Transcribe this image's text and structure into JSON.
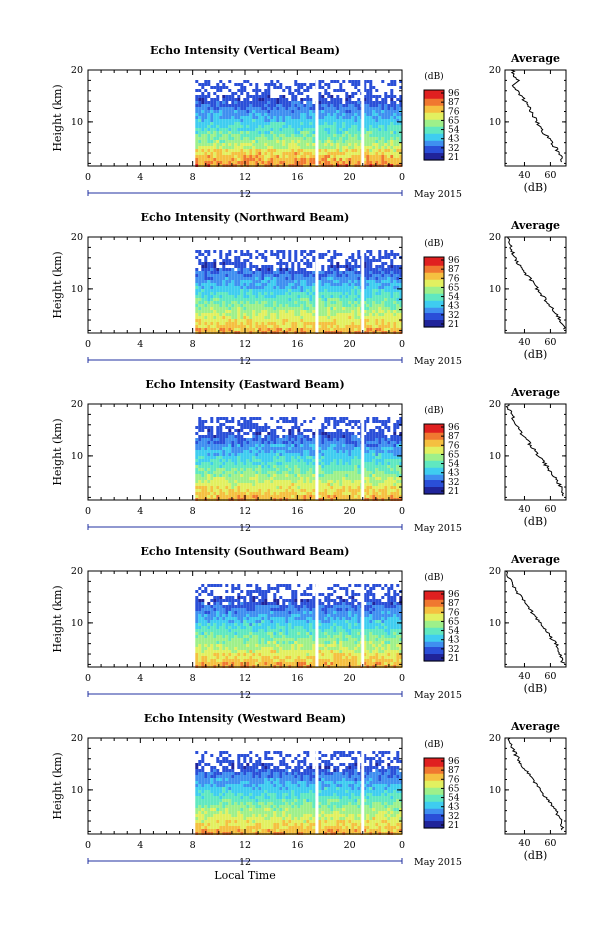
{
  "chart_data": [
    {
      "type": "heatmap",
      "title": "Echo Intensity (Vertical Beam)",
      "ylabel": "Height (km)",
      "xticks": [
        "0",
        "4",
        "8",
        "12",
        "16",
        "20",
        "0"
      ],
      "yticks": [
        "10",
        "20"
      ],
      "xlim": [
        0,
        24
      ],
      "ylim": [
        1.5,
        20
      ],
      "date_marker": "12",
      "date_label": "May 2015",
      "colorbar_title": "(dB)",
      "colorbar_ticks": [
        "96",
        "87",
        "76",
        "65",
        "54",
        "43",
        "32",
        "21"
      ],
      "data_start_hour": 8.2,
      "gap_hours": [
        17.5,
        21.0
      ],
      "profile": {
        "title": "Average",
        "xlabel": "(dB)",
        "xticks": [
          "40",
          "60"
        ],
        "yticks": [
          "10",
          "20"
        ],
        "xlim": [
          25,
          72
        ],
        "heights": [
          20,
          19,
          18,
          17,
          16,
          15,
          14,
          13,
          12,
          11,
          10,
          9,
          8,
          7,
          6,
          5,
          4,
          3,
          2
        ],
        "values": [
          31,
          32,
          35,
          30,
          34,
          38,
          40,
          43,
          45,
          47,
          50,
          52,
          54,
          58,
          61,
          64,
          67,
          69,
          70
        ]
      }
    },
    {
      "type": "heatmap",
      "title": "Echo Intensity (Northward Beam)",
      "ylabel": "Height (km)",
      "xticks": [
        "0",
        "4",
        "8",
        "12",
        "16",
        "20",
        "0"
      ],
      "yticks": [
        "10",
        "20"
      ],
      "xlim": [
        0,
        24
      ],
      "ylim": [
        1.5,
        20
      ],
      "date_marker": "12",
      "date_label": "May 2015",
      "colorbar_title": "(dB)",
      "colorbar_ticks": [
        "96",
        "87",
        "76",
        "65",
        "54",
        "43",
        "32",
        "21"
      ],
      "data_start_hour": 8.2,
      "gap_hours": [
        17.5,
        21.0
      ],
      "profile": {
        "title": "Average",
        "xlabel": "(dB)",
        "xticks": [
          "40",
          "60"
        ],
        "yticks": [
          "10",
          "20"
        ],
        "xlim": [
          25,
          72
        ],
        "heights": [
          20,
          19,
          18,
          17,
          16,
          15,
          14,
          13,
          12,
          11,
          10,
          9,
          8,
          7,
          6,
          5,
          4,
          3,
          2
        ],
        "values": [
          27,
          28,
          30,
          31,
          33,
          35,
          38,
          41,
          44,
          47,
          50,
          53,
          56,
          59,
          62,
          65,
          68,
          70,
          70
        ]
      }
    },
    {
      "type": "heatmap",
      "title": "Echo Intensity (Eastward Beam)",
      "ylabel": "Height (km)",
      "xticks": [
        "0",
        "4",
        "8",
        "12",
        "16",
        "20",
        "0"
      ],
      "yticks": [
        "10",
        "20"
      ],
      "xlim": [
        0,
        24
      ],
      "ylim": [
        1.5,
        20
      ],
      "date_marker": "12",
      "date_label": "May 2015",
      "colorbar_title": "(dB)",
      "colorbar_ticks": [
        "96",
        "87",
        "76",
        "65",
        "54",
        "43",
        "32",
        "21"
      ],
      "data_start_hour": 8.2,
      "gap_hours": [
        17.5,
        21.0
      ],
      "profile": {
        "title": "Average",
        "xlabel": "(dB)",
        "xticks": [
          "40",
          "60"
        ],
        "yticks": [
          "10",
          "20"
        ],
        "xlim": [
          25,
          72
        ],
        "heights": [
          20,
          19,
          18,
          17,
          16,
          15,
          14,
          13,
          12,
          11,
          10,
          9,
          8,
          7,
          6,
          5,
          4,
          3,
          2
        ],
        "values": [
          27,
          28,
          30,
          32,
          34,
          36,
          39,
          42,
          45,
          48,
          51,
          54,
          57,
          60,
          63,
          66,
          68,
          69,
          70
        ]
      }
    },
    {
      "type": "heatmap",
      "title": "Echo Intensity (Southward Beam)",
      "ylabel": "Height (km)",
      "xticks": [
        "0",
        "4",
        "8",
        "12",
        "16",
        "20",
        "0"
      ],
      "yticks": [
        "10",
        "20"
      ],
      "xlim": [
        0,
        24
      ],
      "ylim": [
        1.5,
        20
      ],
      "date_marker": "12",
      "date_label": "May 2015",
      "colorbar_title": "(dB)",
      "colorbar_ticks": [
        "96",
        "87",
        "76",
        "65",
        "54",
        "43",
        "32",
        "21"
      ],
      "data_start_hour": 8.2,
      "gap_hours": [
        17.5,
        21.0
      ],
      "profile": {
        "title": "Average",
        "xlabel": "(dB)",
        "xticks": [
          "40",
          "60"
        ],
        "yticks": [
          "10",
          "20"
        ],
        "xlim": [
          25,
          72
        ],
        "heights": [
          20,
          19,
          18,
          17,
          16,
          15,
          14,
          13,
          12,
          11,
          10,
          9,
          8,
          7,
          6,
          5,
          4,
          3,
          2
        ],
        "values": [
          27,
          28,
          30,
          32,
          34,
          37,
          40,
          43,
          46,
          49,
          52,
          55,
          58,
          61,
          64,
          66,
          68,
          69,
          70
        ]
      }
    },
    {
      "type": "heatmap",
      "title": "Echo Intensity (Westward Beam)",
      "ylabel": "Height (km)",
      "xlabel": "Local Time",
      "xticks": [
        "0",
        "4",
        "8",
        "12",
        "16",
        "20",
        "0"
      ],
      "yticks": [
        "10",
        "20"
      ],
      "xlim": [
        0,
        24
      ],
      "ylim": [
        1.5,
        20
      ],
      "date_marker": "12",
      "date_label": "May 2015",
      "colorbar_title": "(dB)",
      "colorbar_ticks": [
        "96",
        "87",
        "76",
        "65",
        "54",
        "43",
        "32",
        "21"
      ],
      "data_start_hour": 8.2,
      "gap_hours": [
        17.5,
        21.0
      ],
      "profile": {
        "title": "Average",
        "xlabel": "(dB)",
        "xticks": [
          "40",
          "60"
        ],
        "yticks": [
          "10",
          "20"
        ],
        "xlim": [
          25,
          72
        ],
        "heights": [
          20,
          19,
          18,
          17,
          16,
          15,
          14,
          13,
          12,
          11,
          10,
          9,
          8,
          7,
          6,
          5,
          4,
          3,
          2
        ],
        "values": [
          28,
          29,
          31,
          33,
          35,
          37,
          40,
          43,
          46,
          49,
          52,
          55,
          58,
          61,
          64,
          66,
          68,
          69,
          70
        ]
      }
    }
  ],
  "colors": {
    "colormap": [
      "#20249a",
      "#2a4fd8",
      "#3f8ff0",
      "#3fcdf0",
      "#60e8c0",
      "#9ef08a",
      "#e2f060",
      "#f5c040",
      "#f07830",
      "#e02020"
    ],
    "gap": "#ffffff",
    "date_axis": "#2030a0"
  }
}
